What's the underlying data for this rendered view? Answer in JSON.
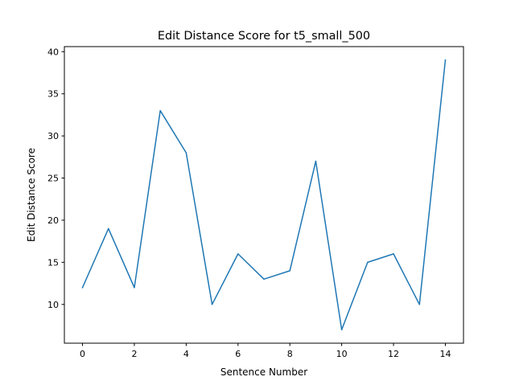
{
  "chart_data": {
    "type": "line",
    "title": "Edit Distance Score for t5_small_500",
    "xlabel": "Sentence Number",
    "ylabel": "Edit Distance Score",
    "x": [
      0,
      1,
      2,
      3,
      4,
      5,
      6,
      7,
      8,
      9,
      10,
      11,
      12,
      13,
      14
    ],
    "series": [
      {
        "values": [
          12,
          19,
          12,
          33,
          28,
          10,
          16,
          13,
          14,
          27,
          7,
          15,
          16,
          10,
          39
        ],
        "color": "#1f77b4"
      }
    ],
    "xlim": [
      -0.7,
      14.7
    ],
    "ylim": [
      5.4,
      40.6
    ],
    "xticks": [
      0,
      2,
      4,
      6,
      8,
      10,
      12,
      14
    ],
    "yticks": [
      10,
      15,
      20,
      25,
      30,
      35,
      40
    ],
    "grid": false,
    "legend": "none"
  }
}
